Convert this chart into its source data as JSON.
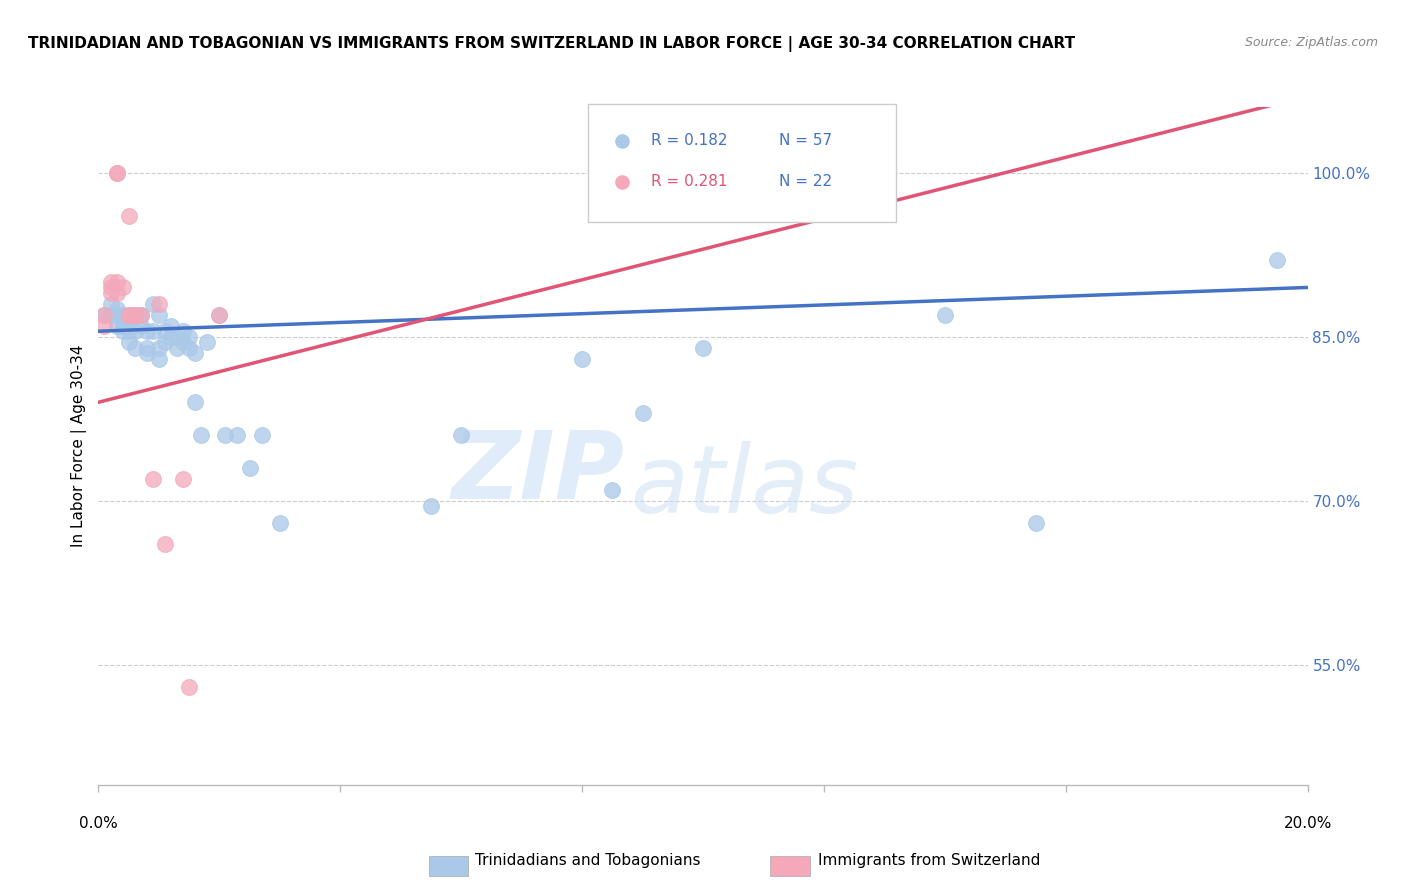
{
  "title": "TRINIDADIAN AND TOBAGONIAN VS IMMIGRANTS FROM SWITZERLAND IN LABOR FORCE | AGE 30-34 CORRELATION CHART",
  "source": "Source: ZipAtlas.com",
  "ylabel": "In Labor Force | Age 30-34",
  "ylabel_right_ticks": [
    "100.0%",
    "85.0%",
    "70.0%",
    "55.0%"
  ],
  "ylabel_right_vals": [
    1.0,
    0.85,
    0.7,
    0.55
  ],
  "xlim": [
    0.0,
    0.2
  ],
  "ylim": [
    0.44,
    1.06
  ],
  "legend_blue_r": "R = 0.182",
  "legend_blue_n": "N = 57",
  "legend_pink_r": "R = 0.281",
  "legend_pink_n": "N = 22",
  "blue_color": "#aac8e8",
  "pink_color": "#f4a8ba",
  "blue_line_color": "#4472c4",
  "pink_line_color": "#e05575",
  "legend_r_color_blue": "#4472c4",
  "legend_r_color_pink": "#e05575",
  "legend_n_color_blue": "#4472c4",
  "legend_n_color_pink": "#4472c4",
  "watermark_zip": "ZIP",
  "watermark_atlas": "atlas",
  "bottom_label_blue": "Trinidadians and Tobagonians",
  "bottom_label_pink": "Immigrants from Switzerland",
  "blue_scatter_x": [
    0.001,
    0.002,
    0.002,
    0.003,
    0.003,
    0.003,
    0.004,
    0.004,
    0.004,
    0.004,
    0.005,
    0.005,
    0.005,
    0.005,
    0.006,
    0.006,
    0.006,
    0.007,
    0.007,
    0.007,
    0.008,
    0.008,
    0.008,
    0.009,
    0.009,
    0.01,
    0.01,
    0.01,
    0.011,
    0.011,
    0.012,
    0.012,
    0.013,
    0.013,
    0.014,
    0.014,
    0.015,
    0.015,
    0.016,
    0.016,
    0.017,
    0.018,
    0.02,
    0.021,
    0.023,
    0.025,
    0.027,
    0.03,
    0.055,
    0.06,
    0.08,
    0.085,
    0.09,
    0.1,
    0.14,
    0.155,
    0.195
  ],
  "blue_scatter_y": [
    0.87,
    0.87,
    0.88,
    0.87,
    0.86,
    0.875,
    0.87,
    0.86,
    0.855,
    0.865,
    0.87,
    0.855,
    0.845,
    0.865,
    0.87,
    0.855,
    0.84,
    0.87,
    0.87,
    0.86,
    0.855,
    0.84,
    0.835,
    0.88,
    0.855,
    0.87,
    0.84,
    0.83,
    0.855,
    0.845,
    0.86,
    0.85,
    0.85,
    0.84,
    0.855,
    0.845,
    0.85,
    0.84,
    0.835,
    0.79,
    0.76,
    0.845,
    0.87,
    0.76,
    0.76,
    0.73,
    0.76,
    0.68,
    0.695,
    0.76,
    0.83,
    0.71,
    0.78,
    0.84,
    0.87,
    0.68,
    0.92
  ],
  "pink_scatter_x": [
    0.001,
    0.001,
    0.002,
    0.002,
    0.002,
    0.003,
    0.003,
    0.003,
    0.003,
    0.004,
    0.005,
    0.005,
    0.005,
    0.006,
    0.006,
    0.007,
    0.009,
    0.01,
    0.011,
    0.014,
    0.015,
    0.02
  ],
  "pink_scatter_y": [
    0.87,
    0.86,
    0.9,
    0.895,
    0.89,
    0.9,
    0.89,
    1.0,
    1.0,
    0.895,
    0.96,
    0.87,
    0.87,
    0.87,
    0.87,
    0.87,
    0.72,
    0.88,
    0.66,
    0.72,
    0.53,
    0.87
  ],
  "blue_trend_x": [
    0.0,
    0.2
  ],
  "blue_trend_y": [
    0.855,
    0.895
  ],
  "pink_trend_x": [
    0.0,
    0.2
  ],
  "pink_trend_y": [
    0.79,
    1.07
  ]
}
